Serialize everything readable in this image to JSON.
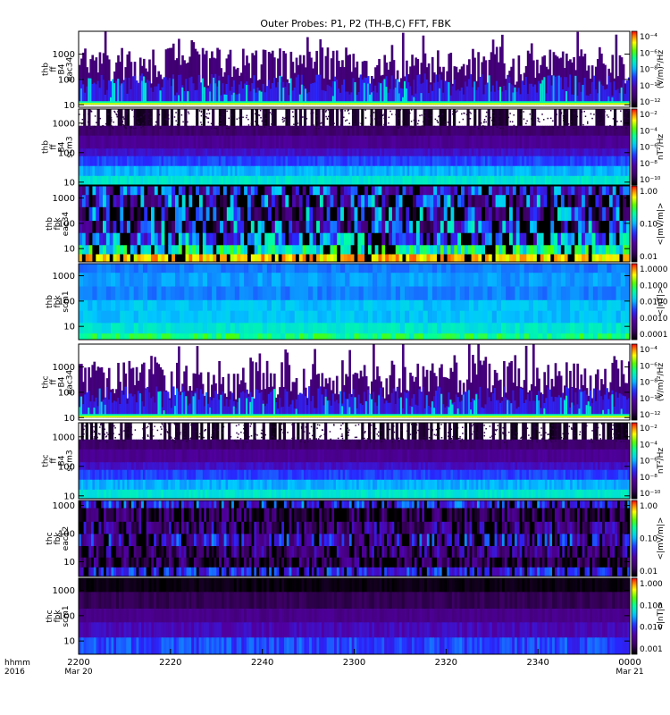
{
  "chart_data": {
    "type": "heatmap",
    "title": "Outer Probes: P1, P2 (TH-B,C) FFT, FBK",
    "x_axis": {
      "corner_label": [
        "hhmm",
        "2016"
      ],
      "ticks": [
        {
          "label": "2200",
          "sub": "Mar 20",
          "hours": 0
        },
        {
          "label": "2220",
          "sub": "",
          "hours": 0.3333
        },
        {
          "label": "2240",
          "sub": "",
          "hours": 0.6667
        },
        {
          "label": "2300",
          "sub": "",
          "hours": 1.0
        },
        {
          "label": "2320",
          "sub": "",
          "hours": 1.3333
        },
        {
          "label": "2340",
          "sub": "",
          "hours": 1.6667
        },
        {
          "label": "0000",
          "sub": "Mar 21",
          "hours": 2.0
        }
      ],
      "range_hours": [
        0,
        2
      ]
    },
    "panels": [
      {
        "name": "thb-ff-eac34",
        "probe_label": [
          "thb",
          "ff",
          "B4",
          "eac34"
        ],
        "yticks": [
          "1000",
          "100",
          "10"
        ],
        "ylim": [
          8,
          8000
        ],
        "cbar_label": "(V/m)²/Hz",
        "cbar_ticks": [
          "10⁻⁴",
          "10⁻⁶",
          "10⁻⁸",
          "10⁻¹⁰",
          "10⁻¹²"
        ],
        "cbar_type": "log",
        "style": "spiky",
        "seed": 1
      },
      {
        "name": "thb-ff-scm3",
        "probe_label": [
          "thb",
          "ff",
          "B4",
          "scm3"
        ],
        "yticks": [
          "1000",
          "100",
          "10"
        ],
        "ylim": [
          8,
          3000
        ],
        "cbar_label": "nT²/Hz",
        "cbar_ticks": [
          "10⁻²",
          "10⁻⁴",
          "10⁻⁶",
          "10⁻⁸",
          "10⁻¹⁰"
        ],
        "cbar_type": "log",
        "style": "scm",
        "seed": 2
      },
      {
        "name": "thb-fbk-eac34",
        "probe_label": [
          "thb",
          "fbk",
          "eac34"
        ],
        "yticks": [
          "1000",
          "100",
          "10"
        ],
        "ylim": [
          3,
          3000
        ],
        "cbar_label": "<|mV/m|>",
        "cbar_ticks": [
          "1.00",
          "0.10",
          "0.01"
        ],
        "cbar_type": "linear",
        "style": "fbk-e",
        "seed": 3
      },
      {
        "name": "thb-fbk-scm1",
        "probe_label": [
          "thb",
          "fbk",
          "scm1"
        ],
        "yticks": [
          "1000",
          "100",
          "10"
        ],
        "ylim": [
          3,
          3000
        ],
        "cbar_label": "<|nT|>",
        "cbar_ticks": [
          "1.0000",
          "0.1000",
          "0.0100",
          "0.0010",
          "0.0001"
        ],
        "cbar_type": "linear",
        "style": "fbk-b",
        "seed": 4
      },
      {
        "name": "thc-ff-eac34",
        "probe_label": [
          "thc",
          "ff",
          "B4",
          "eac34"
        ],
        "yticks": [
          "1000",
          "100",
          "10"
        ],
        "ylim": [
          8,
          8000
        ],
        "cbar_label": "(V/m)²/Hz",
        "cbar_ticks": [
          "10⁻⁴",
          "10⁻⁶",
          "10⁻⁸",
          "10⁻¹⁰",
          "10⁻¹²"
        ],
        "cbar_type": "log",
        "style": "spiky",
        "seed": 5
      },
      {
        "name": "thc-ff-scm3",
        "probe_label": [
          "thc",
          "ff",
          "B4",
          "scm3"
        ],
        "yticks": [
          "1000",
          "100",
          "10"
        ],
        "ylim": [
          8,
          3000
        ],
        "cbar_label": "nT²/Hz",
        "cbar_ticks": [
          "10⁻²",
          "10⁻⁴",
          "10⁻⁶",
          "10⁻⁸",
          "10⁻¹⁰"
        ],
        "cbar_type": "log",
        "style": "scm",
        "seed": 6
      },
      {
        "name": "thc-fbk-eac12",
        "probe_label": [
          "thc",
          "fbk",
          "eac12"
        ],
        "yticks": [
          "1000",
          "100",
          "10"
        ],
        "ylim": [
          3,
          1500
        ],
        "cbar_label": "<|mV/m|>",
        "cbar_ticks": [
          "1.00",
          "0.10",
          "0.01"
        ],
        "cbar_type": "linear",
        "style": "fbk-e2",
        "seed": 7
      },
      {
        "name": "thc-fbk-scm1",
        "probe_label": [
          "thc",
          "fbk",
          "scm1"
        ],
        "yticks": [
          "1000",
          "100",
          "10"
        ],
        "ylim": [
          3,
          3000
        ],
        "cbar_label": "<|nT|>",
        "cbar_ticks": [
          "1.000",
          "0.100",
          "0.010",
          "0.001"
        ],
        "cbar_type": "linear",
        "style": "fbk-b2",
        "seed": 8
      }
    ]
  }
}
